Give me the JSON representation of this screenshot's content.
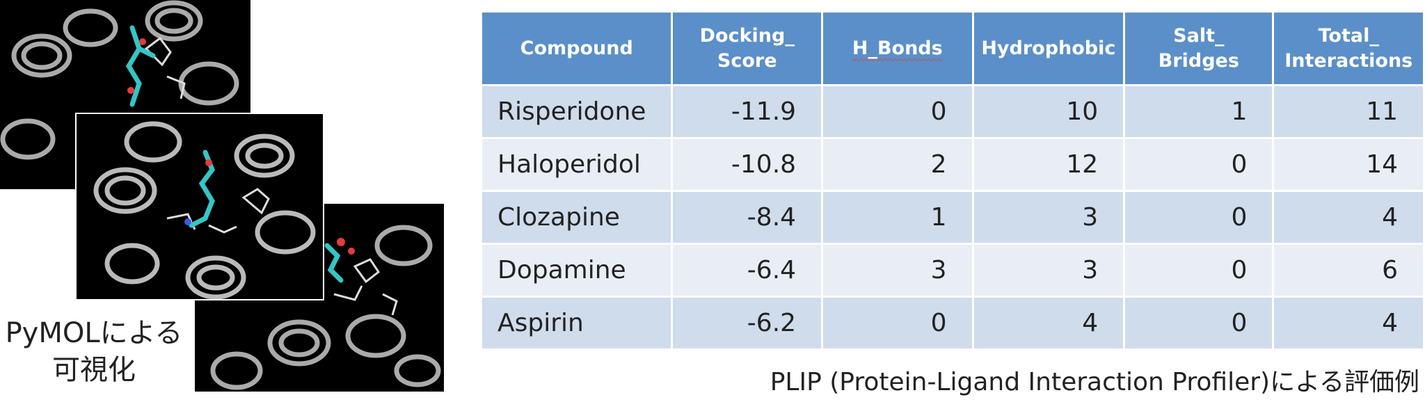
{
  "pymol_caption": {
    "line1": "PyMOLによる",
    "line2": "可視化"
  },
  "table": {
    "headers": {
      "compound": "Compound",
      "docking_score_1": "Docking_",
      "docking_score_2": "Score",
      "h_bonds": "H_Bonds",
      "hydrophobic": "Hydrophobic",
      "salt_bridges_1": "Salt_",
      "salt_bridges_2": "Bridges",
      "total_interactions_1": "Total_",
      "total_interactions_2": "Interactions"
    },
    "rows": [
      {
        "compound": "Risperidone",
        "docking_score": "-11.9",
        "h_bonds": "0",
        "hydrophobic": "10",
        "salt_bridges": "1",
        "total_interactions": "11"
      },
      {
        "compound": "Haloperidol",
        "docking_score": "-10.8",
        "h_bonds": "2",
        "hydrophobic": "12",
        "salt_bridges": "0",
        "total_interactions": "14"
      },
      {
        "compound": "Clozapine",
        "docking_score": "-8.4",
        "h_bonds": "1",
        "hydrophobic": "3",
        "salt_bridges": "0",
        "total_interactions": "4"
      },
      {
        "compound": "Dopamine",
        "docking_score": "-6.4",
        "h_bonds": "3",
        "hydrophobic": "3",
        "salt_bridges": "0",
        "total_interactions": "6"
      },
      {
        "compound": "Aspirin",
        "docking_score": "-6.2",
        "h_bonds": "0",
        "hydrophobic": "4",
        "salt_bridges": "0",
        "total_interactions": "4"
      }
    ]
  },
  "plip_caption": "PLIP (Protein-Ligand Interaction Profiler)による評価例",
  "colors": {
    "header_bg": "#5b8fc9",
    "row_odd": "#cfdcec",
    "row_even": "#e9eef6",
    "helix": "#c8c8c8",
    "ligand_carbon": "#33c6c6",
    "ligand_oxygen": "#e23c3c"
  }
}
